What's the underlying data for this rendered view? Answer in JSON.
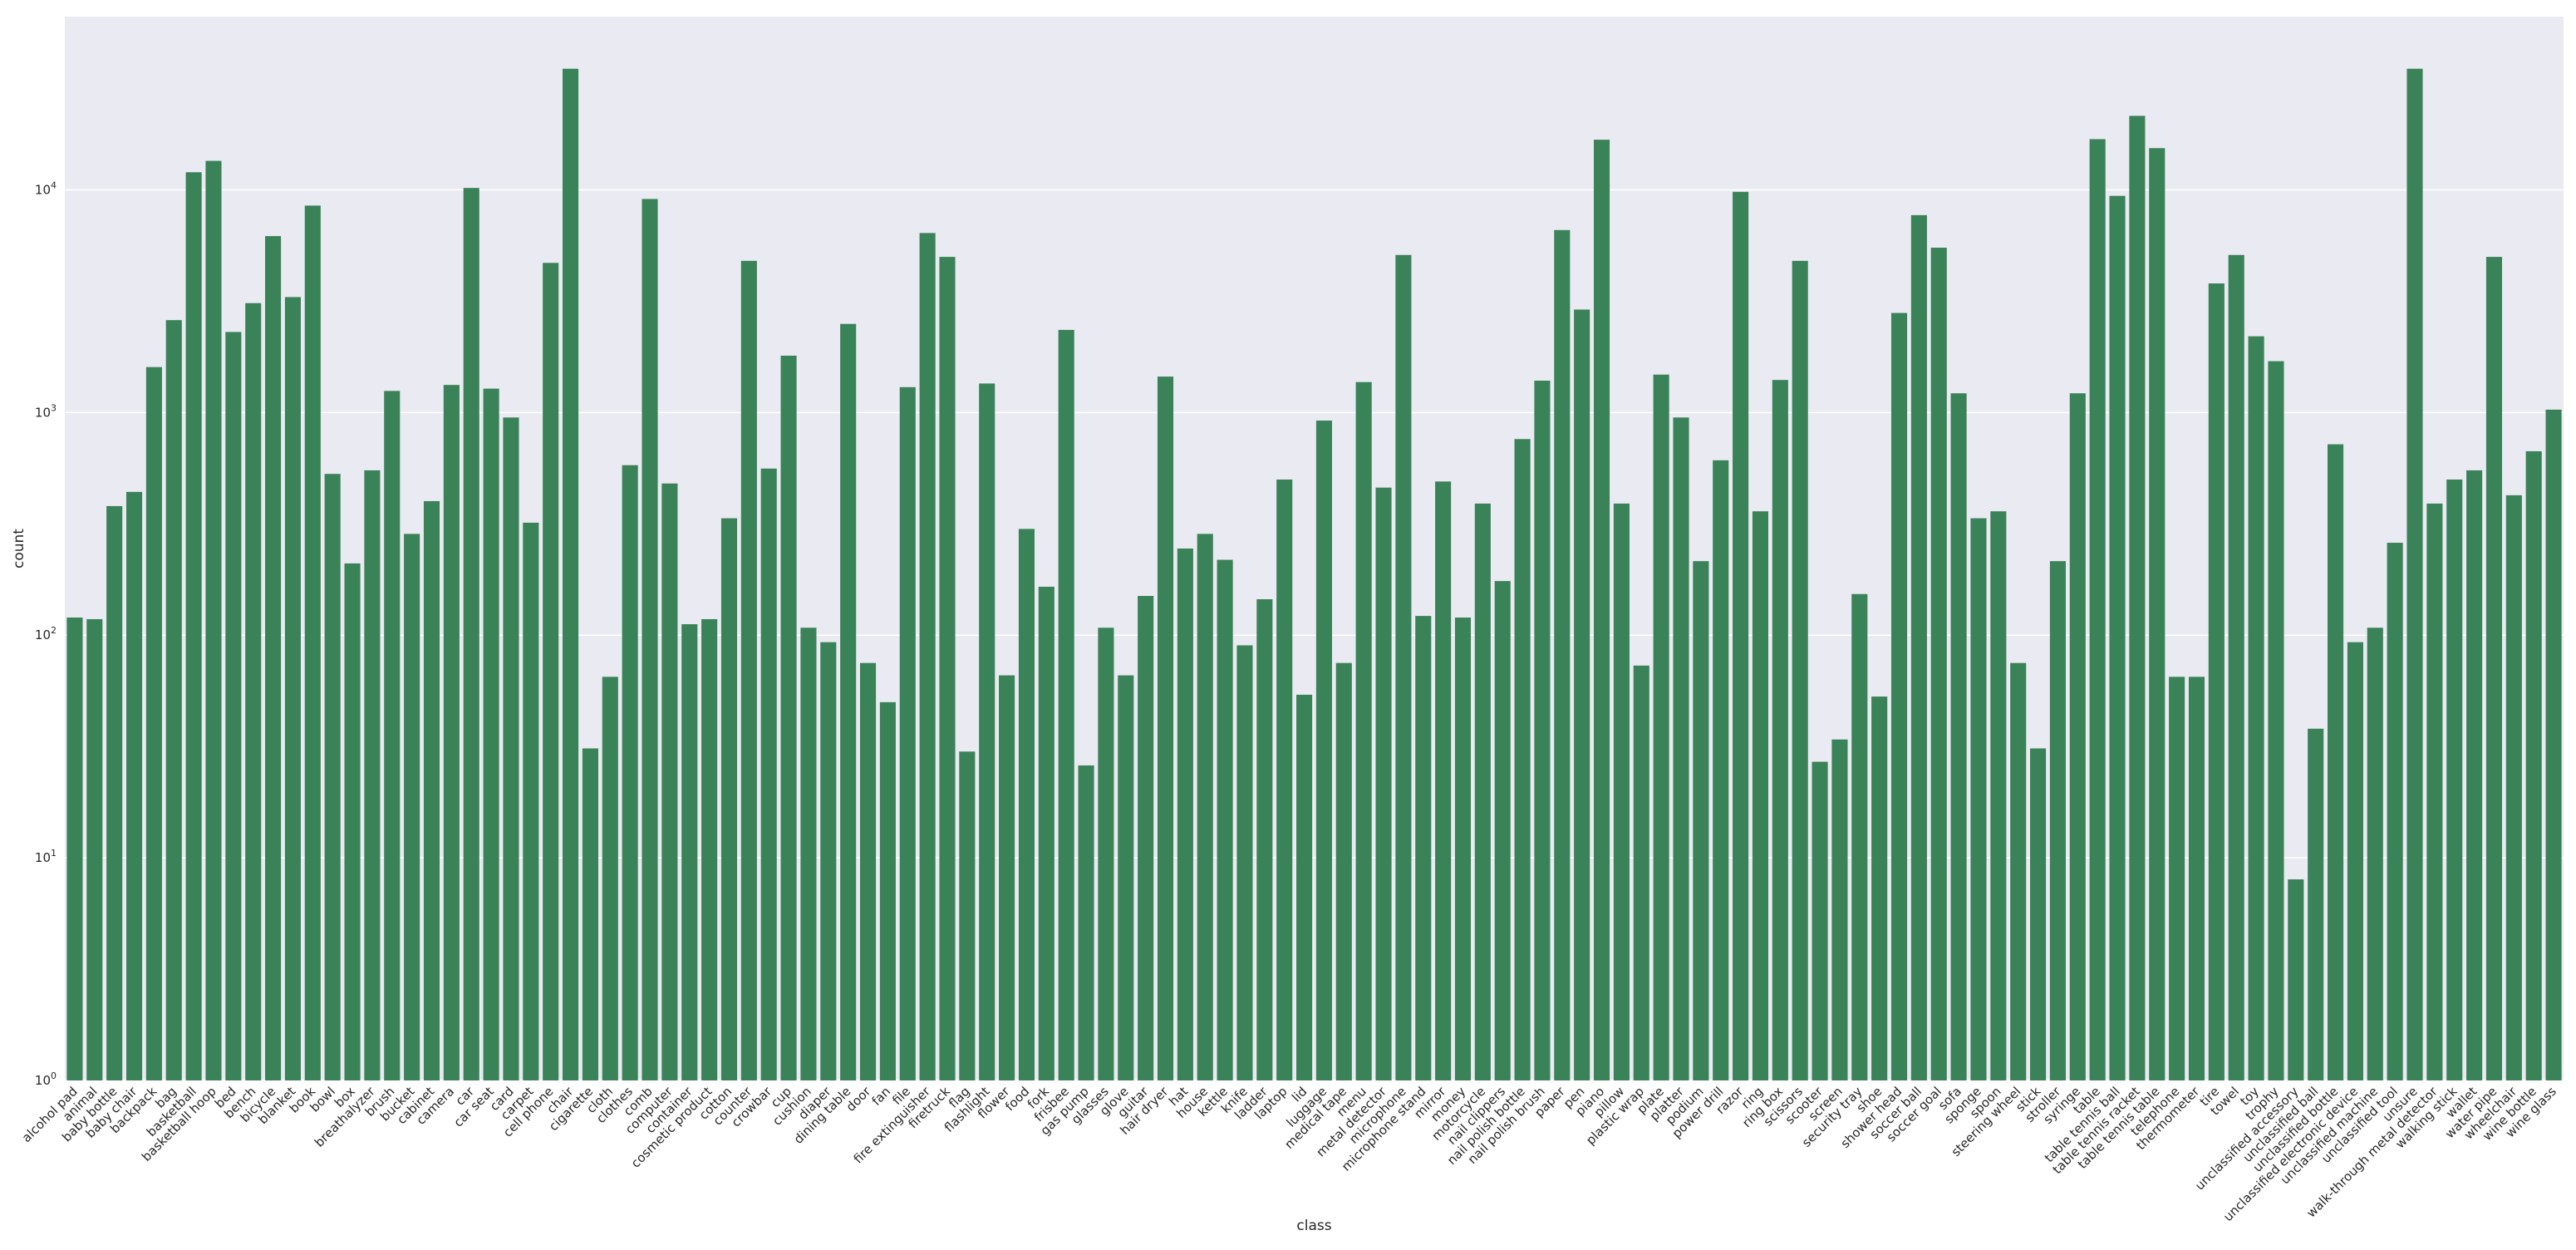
{
  "chart_data": {
    "type": "bar",
    "xlabel": "class",
    "ylabel": "count",
    "yscale": "log",
    "ylim": [
      1,
      60000
    ],
    "yticks": [
      {
        "value": 1,
        "base": "10",
        "exp": "0"
      },
      {
        "value": 10,
        "base": "10",
        "exp": "1"
      },
      {
        "value": 100,
        "base": "10",
        "exp": "2"
      },
      {
        "value": 1000,
        "base": "10",
        "exp": "3"
      },
      {
        "value": 10000,
        "base": "10",
        "exp": "4"
      }
    ],
    "grid": true,
    "background_color": "#eaeaf2",
    "bar_color": "#3a8258",
    "categories": [
      "alcohol pad",
      "animal",
      "baby bottle",
      "baby chair",
      "backpack",
      "bag",
      "basketball",
      "basketball hoop",
      "bed",
      "bench",
      "bicycle",
      "blanket",
      "book",
      "bowl",
      "box",
      "breathalyzer",
      "brush",
      "bucket",
      "cabinet",
      "camera",
      "car",
      "car seat",
      "card",
      "carpet",
      "cell phone",
      "chair",
      "cigarette",
      "cloth",
      "clothes",
      "comb",
      "computer",
      "container",
      "cosmetic product",
      "cotton",
      "counter",
      "crowbar",
      "cup",
      "cushion",
      "diaper",
      "dining table",
      "door",
      "fan",
      "file",
      "fire extinguisher",
      "firetruck",
      "flag",
      "flashlight",
      "flower",
      "food",
      "fork",
      "frisbee",
      "gas pump",
      "glasses",
      "glove",
      "guitar",
      "hair dryer",
      "hat",
      "house",
      "kettle",
      "knife",
      "ladder",
      "laptop",
      "lid",
      "luggage",
      "medical tape",
      "menu",
      "metal detector",
      "microphone",
      "microphone stand",
      "mirror",
      "money",
      "motorcycle",
      "nail clippers",
      "nail polish bottle",
      "nail polish brush",
      "paper",
      "pen",
      "piano",
      "pillow",
      "plastic wrap",
      "plate",
      "platter",
      "podium",
      "power drill",
      "razor",
      "ring",
      "ring box",
      "scissors",
      "scooter",
      "screen",
      "security tray",
      "shoe",
      "shower head",
      "soccer ball",
      "soccer goal",
      "sofa",
      "sponge",
      "spoon",
      "steering wheel",
      "stick",
      "stroller",
      "syringe",
      "table",
      "table tennis ball",
      "table tennis racket",
      "table tennis table",
      "telephone",
      "thermometer",
      "tire",
      "towel",
      "toy",
      "trophy",
      "unclassified accessory",
      "unclassified ball",
      "unclassified bottle",
      "unclassified electronic device",
      "unclassified machine",
      "unclassified tool",
      "unsure",
      "walk-through metal detector",
      "walking stick",
      "wallet",
      "water pipe",
      "wheelchair",
      "wine bottle",
      "wine glass"
    ],
    "values": [
      120,
      118,
      380,
      440,
      1600,
      2600,
      12000,
      13500,
      2300,
      3100,
      6200,
      3300,
      8500,
      530,
      210,
      550,
      1250,
      285,
      400,
      1330,
      10200,
      1280,
      950,
      320,
      4700,
      35000,
      31,
      65,
      580,
      9100,
      480,
      112,
      118,
      335,
      4800,
      560,
      1800,
      108,
      93,
      2500,
      75,
      50,
      1300,
      6400,
      5000,
      30,
      1350,
      66,
      300,
      165,
      2350,
      26,
      108,
      66,
      150,
      1450,
      245,
      285,
      218,
      90,
      145,
      500,
      54,
      920,
      75,
      1370,
      460,
      5100,
      122,
      490,
      120,
      390,
      175,
      760,
      1390,
      6600,
      2900,
      16800,
      390,
      73,
      1480,
      950,
      215,
      610,
      9800,
      360,
      1400,
      4800,
      27,
      34,
      153,
      53,
      2800,
      7700,
      5500,
      1220,
      335,
      360,
      75,
      31,
      215,
      1220,
      16900,
      9400,
      21500,
      15400,
      65,
      65,
      3800,
      5100,
      2200,
      1700,
      8,
      38,
      720,
      93,
      108,
      260,
      35000,
      390,
      500,
      550,
      5000,
      425,
      670,
      1030
    ]
  }
}
